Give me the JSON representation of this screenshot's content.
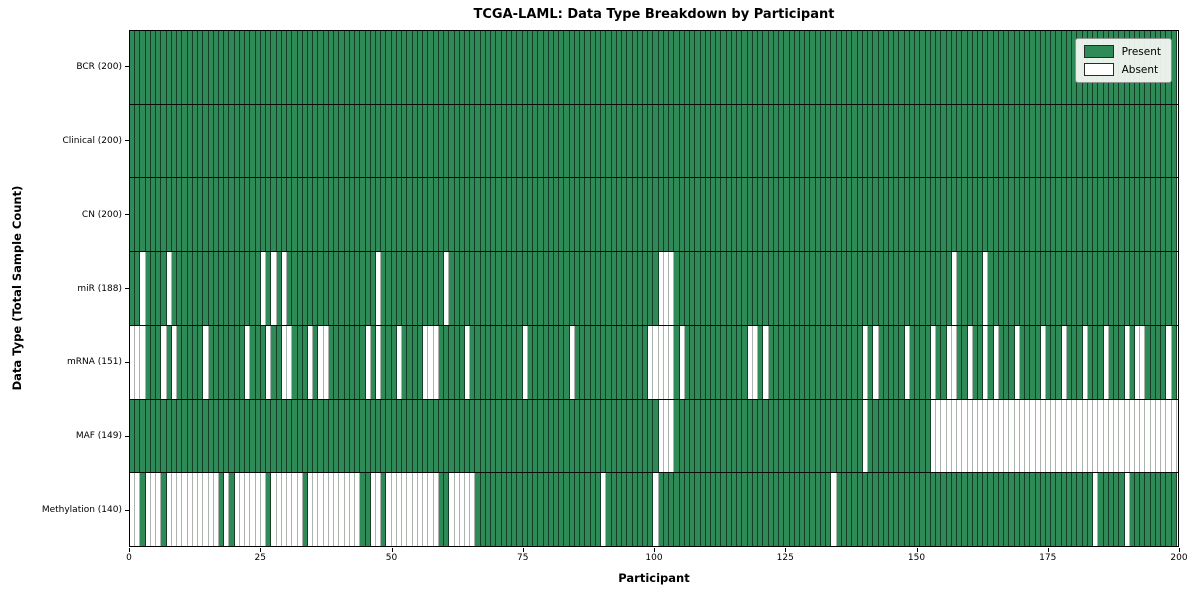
{
  "title": "TCGA-LAML: Data Type Breakdown by Participant",
  "chart_data": {
    "type": "heatmap",
    "title": "TCGA-LAML: Data Type Breakdown by Participant",
    "xlabel": "Participant",
    "ylabel": "Data Type (Total Sample Count)",
    "n_participants": 200,
    "x_ticks": [
      0,
      25,
      50,
      75,
      100,
      125,
      150,
      175,
      200
    ],
    "grid": false,
    "legend_position": "upper right",
    "legend": [
      {
        "label": "Present",
        "color": "#2e8b57"
      },
      {
        "label": "Absent",
        "color": "#ffffff"
      }
    ],
    "colors": {
      "present": "#2e8b57",
      "absent": "#ffffff",
      "plot_border": "#000000"
    },
    "rows": [
      {
        "label": "BCR (200)",
        "name": "BCR",
        "present_count": 200,
        "absent_participants": []
      },
      {
        "label": "Clinical (200)",
        "name": "Clinical",
        "present_count": 200,
        "absent_participants": []
      },
      {
        "label": "CN (200)",
        "name": "CN",
        "present_count": 200,
        "absent_participants": []
      },
      {
        "label": "miR (188)",
        "name": "miR",
        "present_count": 188,
        "absent_participants": [
          2,
          7,
          25,
          27,
          29,
          47,
          60,
          101,
          102,
          103,
          157,
          163
        ]
      },
      {
        "label": "mRNA (151)",
        "name": "mRNA",
        "present_count": 151,
        "absent_participants": [
          0,
          1,
          2,
          6,
          8,
          14,
          22,
          26,
          29,
          30,
          34,
          36,
          37,
          45,
          47,
          51,
          56,
          57,
          58,
          64,
          75,
          84,
          99,
          100,
          101,
          102,
          103,
          105,
          118,
          119,
          121,
          140,
          142,
          148,
          153,
          156,
          157,
          160,
          163,
          165,
          169,
          174,
          178,
          182,
          186,
          190,
          192,
          193,
          198
        ]
      },
      {
        "label": "MAF (149)",
        "name": "MAF",
        "present_count": 149,
        "absent_participants": [
          101,
          102,
          103,
          140,
          153,
          154,
          155,
          156,
          157,
          158,
          159,
          160,
          161,
          162,
          163,
          164,
          165,
          166,
          167,
          168,
          169,
          170,
          171,
          172,
          173,
          174,
          175,
          176,
          177,
          178,
          179,
          180,
          181,
          182,
          183,
          184,
          185,
          186,
          187,
          188,
          189,
          190,
          191,
          192,
          193,
          194,
          195,
          196,
          197,
          198,
          199
        ]
      },
      {
        "label": "Methylation (140)",
        "name": "Methylation",
        "present_count": 140,
        "absent_participants": [
          0,
          1,
          3,
          4,
          5,
          7,
          8,
          9,
          10,
          11,
          12,
          13,
          14,
          15,
          16,
          18,
          20,
          21,
          22,
          23,
          24,
          25,
          27,
          28,
          29,
          30,
          31,
          32,
          34,
          35,
          36,
          37,
          38,
          39,
          40,
          41,
          42,
          43,
          46,
          47,
          49,
          50,
          51,
          52,
          53,
          54,
          55,
          56,
          57,
          58,
          61,
          62,
          63,
          64,
          65,
          90,
          100,
          134,
          184,
          190
        ]
      }
    ]
  }
}
